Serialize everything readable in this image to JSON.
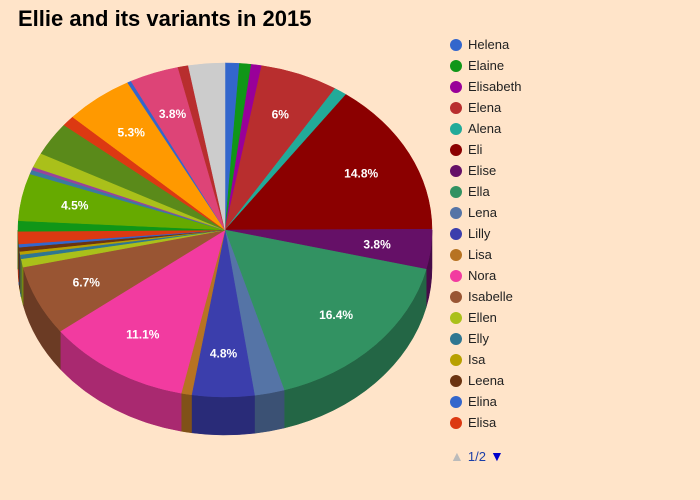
{
  "chart_data": {
    "type": "pie",
    "title": "Ellie and its variants in 2015",
    "slices": [
      {
        "name": "Helena",
        "value": 1.1,
        "color": "#3366cc",
        "label": ""
      },
      {
        "name": "Elaine",
        "value": 0.9,
        "color": "#109618",
        "label": ""
      },
      {
        "name": "Elisabeth",
        "value": 0.8,
        "color": "#990099",
        "label": ""
      },
      {
        "name": "Elena",
        "value": 6.0,
        "color": "#b82e2e",
        "label": "6%"
      },
      {
        "name": "Alena",
        "value": 1.0,
        "color": "#22aa99",
        "label": ""
      },
      {
        "name": "Eli",
        "value": 14.8,
        "color": "#8b0000",
        "label": "14.8%"
      },
      {
        "name": "Elise",
        "value": 3.8,
        "color": "#651067",
        "label": "3.8%"
      },
      {
        "name": "Ella",
        "value": 16.4,
        "color": "#329262",
        "label": "16.4%"
      },
      {
        "name": "Lena",
        "value": 2.3,
        "color": "#5574a6",
        "label": ""
      },
      {
        "name": "Lilly",
        "value": 4.8,
        "color": "#3b3eac",
        "label": "4.8%"
      },
      {
        "name": "Lisa",
        "value": 0.8,
        "color": "#b77322",
        "label": ""
      },
      {
        "name": "Nora",
        "value": 11.1,
        "color": "#f23ba0",
        "label": "11.1%"
      },
      {
        "name": "Isabelle",
        "value": 6.7,
        "color": "#995533",
        "label": "6.7%"
      },
      {
        "name": "Ellen",
        "value": 0.8,
        "color": "#aac01a",
        "label": ""
      },
      {
        "name": "Elly",
        "value": 0.4,
        "color": "#2f7691",
        "label": ""
      },
      {
        "name": "Isa",
        "value": 0.3,
        "color": "#b8a000",
        "label": ""
      },
      {
        "name": "Leena",
        "value": 0.4,
        "color": "#6b3310",
        "label": ""
      },
      {
        "name": "Elina",
        "value": 0.3,
        "color": "#3366cc",
        "label": ""
      },
      {
        "name": "Elisa",
        "value": 1.2,
        "color": "#dc3912",
        "label": ""
      },
      {
        "name": "",
        "value": 1.0,
        "color": "#109618",
        "label": ""
      },
      {
        "name": "",
        "value": 4.5,
        "color": "#66aa00",
        "label": "4.5%"
      },
      {
        "name": "",
        "value": 0.4,
        "color": "#3b7aa0",
        "label": ""
      },
      {
        "name": "",
        "value": 0.3,
        "color": "#994499",
        "label": ""
      },
      {
        "name": "",
        "value": 1.4,
        "color": "#aac01a",
        "label": ""
      },
      {
        "name": "",
        "value": 3.2,
        "color": "#5a8a1a",
        "label": ""
      },
      {
        "name": "",
        "value": 1.0,
        "color": "#dc3912",
        "label": ""
      },
      {
        "name": "",
        "value": 5.3,
        "color": "#ff9900",
        "label": "5.3%"
      },
      {
        "name": "",
        "value": 0.3,
        "color": "#3366cc",
        "label": ""
      },
      {
        "name": "",
        "value": 3.8,
        "color": "#dd4477",
        "label": "3.8%"
      },
      {
        "name": "",
        "value": 0.8,
        "color": "#b82e2e",
        "label": ""
      },
      {
        "name": "",
        "value": 2.8,
        "color": "#cccccc",
        "label": ""
      }
    ]
  },
  "legend": {
    "items": [
      {
        "label": "Helena",
        "color": "#3366cc"
      },
      {
        "label": "Elaine",
        "color": "#109618"
      },
      {
        "label": "Elisabeth",
        "color": "#990099"
      },
      {
        "label": "Elena",
        "color": "#b82e2e"
      },
      {
        "label": "Alena",
        "color": "#22aa99"
      },
      {
        "label": "Eli",
        "color": "#8b0000"
      },
      {
        "label": "Elise",
        "color": "#651067"
      },
      {
        "label": "Ella",
        "color": "#329262"
      },
      {
        "label": "Lena",
        "color": "#5574a6"
      },
      {
        "label": "Lilly",
        "color": "#3b3eac"
      },
      {
        "label": "Lisa",
        "color": "#b77322"
      },
      {
        "label": "Nora",
        "color": "#f23ba0"
      },
      {
        "label": "Isabelle",
        "color": "#995533"
      },
      {
        "label": "Ellen",
        "color": "#aac01a"
      },
      {
        "label": "Elly",
        "color": "#2f7691"
      },
      {
        "label": "Isa",
        "color": "#b8a000"
      },
      {
        "label": "Leena",
        "color": "#6b3310"
      },
      {
        "label": "Elina",
        "color": "#3366cc"
      },
      {
        "label": "Elisa",
        "color": "#dc3912"
      }
    ]
  },
  "pager": {
    "text": "1/2",
    "prev_icon": "triangle-up-icon",
    "next_icon": "triangle-down-icon"
  }
}
